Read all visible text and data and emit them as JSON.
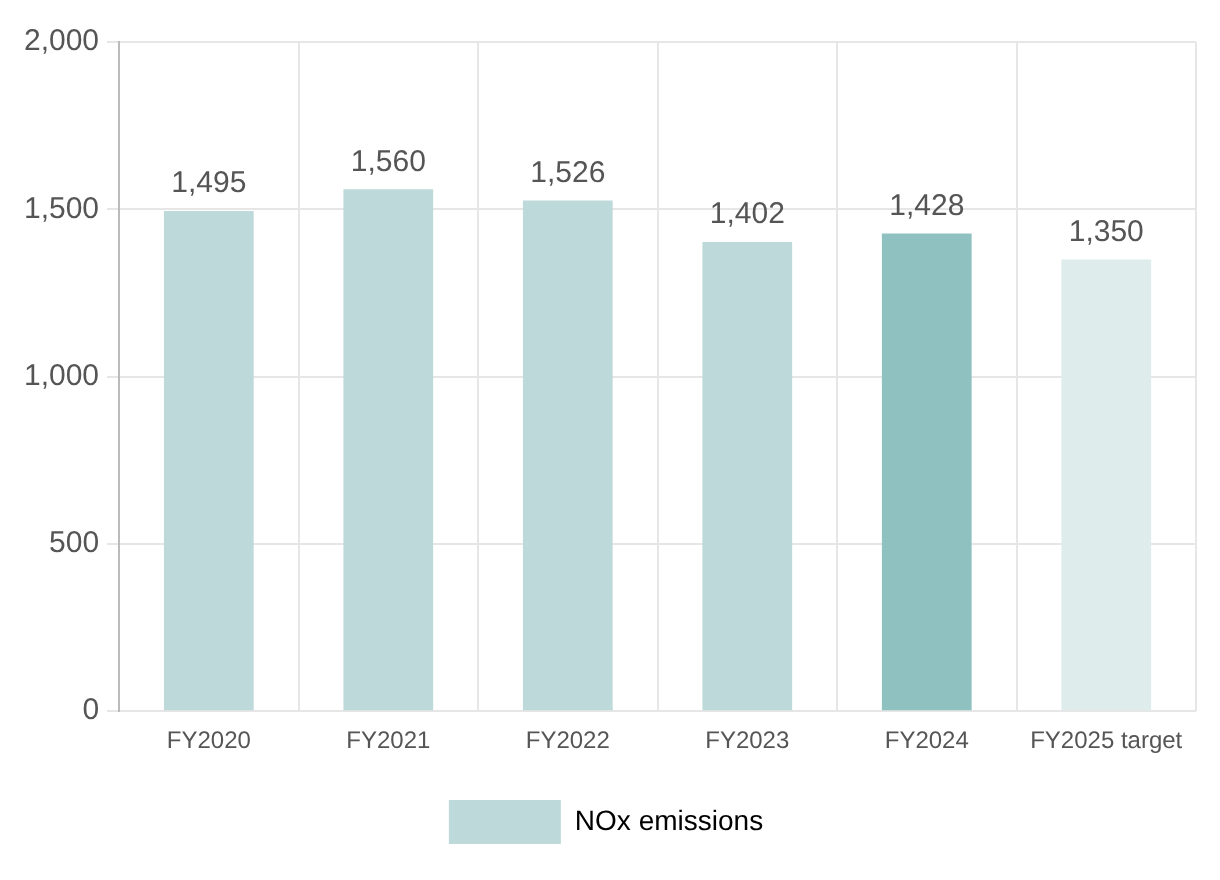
{
  "chart_data": {
    "type": "bar",
    "categories": [
      "FY2020",
      "FY2021",
      "FY2022",
      "FY2023",
      "FY2024",
      "FY2025 target"
    ],
    "series": [
      {
        "name": "NOx emissions",
        "color": "#bdd9d9",
        "colors": [
          "#bdd9d9",
          "#bdd9d9",
          "#bdd9d9",
          "#bdd9d9",
          "#8fc1c1",
          "#deecec"
        ],
        "values": [
          1495,
          1560,
          1526,
          1402,
          1428,
          1350
        ]
      }
    ],
    "value_labels": [
      "1,495",
      "1,560",
      "1,526",
      "1,402",
      "1,428",
      "1,350"
    ],
    "ylim": [
      0,
      2000
    ],
    "yticks": [
      {
        "value": 0,
        "label": "0"
      },
      {
        "value": 500,
        "label": "500"
      },
      {
        "value": 1000,
        "label": "1,000"
      },
      {
        "value": 1500,
        "label": "1,500"
      },
      {
        "value": 2000,
        "label": "2,000"
      }
    ],
    "grid": true,
    "legend": "bottom"
  }
}
